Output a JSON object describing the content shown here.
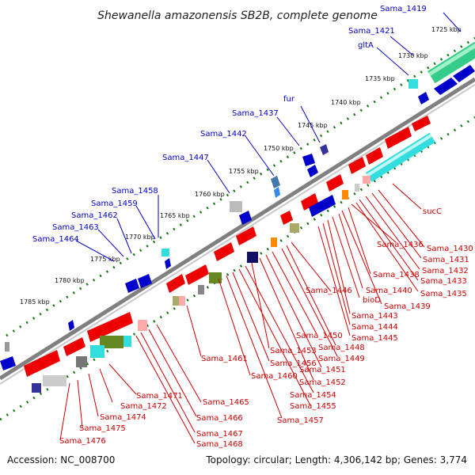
{
  "title": "Shewanella amazonensis SB2B, complete genome",
  "footer": {
    "accession": "Accession: NC_008700",
    "summary": "Topology: circular; Length: 4,306,142 bp; Genes: 3,774"
  },
  "kbp_ticks": [
    {
      "label": "1725 kbp"
    },
    {
      "label": "1730 kbp"
    },
    {
      "label": "1735 kbp"
    },
    {
      "label": "1740 kbp"
    },
    {
      "label": "1745 kbp"
    },
    {
      "label": "1750 kbp"
    },
    {
      "label": "1755 kbp"
    },
    {
      "label": "1760 kbp"
    },
    {
      "label": "1765 kbp"
    },
    {
      "label": "1770 kbp"
    },
    {
      "label": "1775 kbp"
    },
    {
      "label": "1780 kbp"
    },
    {
      "label": "1785 kbp"
    }
  ],
  "top_labels": [
    {
      "text": "Sama_1419"
    },
    {
      "text": "Sama_1421"
    },
    {
      "text": "gltA"
    },
    {
      "text": "fur"
    },
    {
      "text": "Sama_1437"
    },
    {
      "text": "Sama_1442"
    },
    {
      "text": "Sama_1447"
    },
    {
      "text": "Sama_1458"
    },
    {
      "text": "Sama_1459"
    },
    {
      "text": "Sama_1462"
    },
    {
      "text": "Sama_1463"
    },
    {
      "text": "Sama_1464"
    }
  ],
  "bottom_labels": [
    {
      "text": "sucC"
    },
    {
      "text": "Sama_1430"
    },
    {
      "text": "Sama_1431"
    },
    {
      "text": "Sama_1432"
    },
    {
      "text": "Sama_1433"
    },
    {
      "text": "Sama_1435"
    },
    {
      "text": "Sama_1436"
    },
    {
      "text": "Sama_1438"
    },
    {
      "text": "Sama_1439"
    },
    {
      "text": "Sama_1440"
    },
    {
      "text": "bioD"
    },
    {
      "text": "Sama_1443"
    },
    {
      "text": "Sama_1444"
    },
    {
      "text": "Sama_1445"
    },
    {
      "text": "Sama_1446"
    },
    {
      "text": "Sama_1448"
    },
    {
      "text": "Sama_1449"
    },
    {
      "text": "Sama_1450"
    },
    {
      "text": "Sama_1451"
    },
    {
      "text": "Sama_1452"
    },
    {
      "text": "Sama_1453"
    },
    {
      "text": "Sama_1454"
    },
    {
      "text": "Sama_1455"
    },
    {
      "text": "Sama_1456"
    },
    {
      "text": "Sama_1457"
    },
    {
      "text": "Sama_1460"
    },
    {
      "text": "Sama_1461"
    },
    {
      "text": "Sama_1465"
    },
    {
      "text": "Sama_1466"
    },
    {
      "text": "Sama_1467"
    },
    {
      "text": "Sama_1468"
    },
    {
      "text": "Sama_1471"
    },
    {
      "text": "Sama_1472"
    },
    {
      "text": "Sama_1474"
    },
    {
      "text": "Sama_1475"
    },
    {
      "text": "Sama_1476"
    }
  ],
  "colors": {
    "backbone": "#808080",
    "forward_gene": "#0000cc",
    "reverse_gene": "#ee0000",
    "cyan_feature": "#33dddd",
    "green_feature": "#33cc88",
    "dotted_track": "#117711",
    "top_label": "#0000cc",
    "bottom_label": "#cc0000"
  }
}
